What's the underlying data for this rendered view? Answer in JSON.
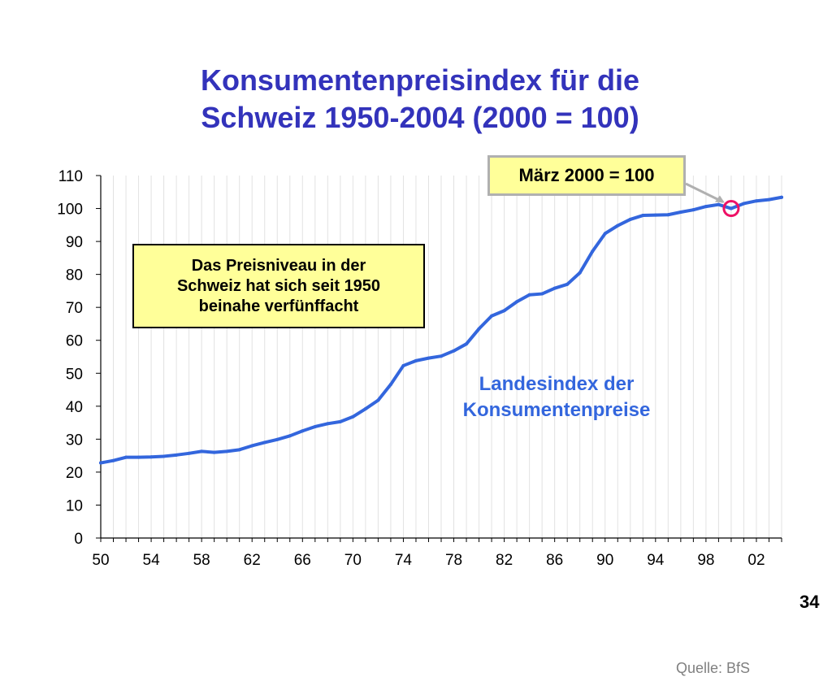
{
  "slide": {
    "title_line1": "Konsumentenpreisindex für die",
    "title_line2": "Schweiz 1950-2004 (2000 = 100)",
    "callout_line1": "Das Preisniveau in der",
    "callout_line2": "Schweiz hat sich seit 1950",
    "callout_line3": "beinahe verfünffacht",
    "marker_label": "März 2000 = 100",
    "series_label_line1": "Landesindex der",
    "series_label_line2": "Konsumentenpreise",
    "source": "Quelle: BfS",
    "page_number": "34"
  },
  "colors": {
    "title": "#3333bb",
    "line": "#3366dd",
    "callout_fill": "#ffff99",
    "marker_circle": "#ee1166"
  },
  "chart_data": {
    "type": "line",
    "title": "Konsumentenpreisindex für die Schweiz 1950-2004 (2000 = 100)",
    "xlabel": "",
    "ylabel": "",
    "xlim": [
      1950,
      2004
    ],
    "ylim": [
      0,
      110
    ],
    "yticks": [
      0,
      10,
      20,
      30,
      40,
      50,
      60,
      70,
      80,
      90,
      100,
      110
    ],
    "xticks": [
      1950,
      1954,
      1958,
      1962,
      1966,
      1970,
      1974,
      1978,
      1982,
      1986,
      1990,
      1994,
      1998,
      2002
    ],
    "xtick_labels": [
      "50",
      "54",
      "58",
      "62",
      "66",
      "70",
      "74",
      "78",
      "82",
      "86",
      "90",
      "94",
      "98",
      "02"
    ],
    "grid": "vertical",
    "series": [
      {
        "name": "Landesindex der Konsumentenpreise",
        "x": [
          1950,
          1951,
          1952,
          1953,
          1954,
          1955,
          1956,
          1957,
          1958,
          1959,
          1960,
          1961,
          1962,
          1963,
          1964,
          1965,
          1966,
          1967,
          1968,
          1969,
          1970,
          1971,
          1972,
          1973,
          1974,
          1975,
          1976,
          1977,
          1978,
          1979,
          1980,
          1981,
          1982,
          1983,
          1984,
          1985,
          1986,
          1987,
          1988,
          1989,
          1990,
          1991,
          1992,
          1993,
          1994,
          1995,
          1996,
          1997,
          1998,
          1999,
          2000,
          2001,
          2002,
          2003,
          2004
        ],
        "values": [
          22.8,
          23.5,
          24.5,
          24.5,
          24.6,
          24.8,
          25.2,
          25.7,
          26.3,
          26.0,
          26.3,
          26.8,
          28.0,
          29.0,
          29.9,
          31.0,
          32.5,
          33.8,
          34.7,
          35.3,
          36.8,
          39.2,
          41.8,
          46.6,
          52.3,
          53.8,
          54.6,
          55.2,
          56.8,
          58.9,
          63.5,
          67.4,
          69.0,
          71.7,
          73.8,
          74.1,
          75.8,
          77.0,
          80.5,
          87.0,
          92.4,
          94.8,
          96.7,
          97.9,
          98.0,
          98.1,
          98.9,
          99.6,
          100.6,
          101.2,
          100.0,
          101.5,
          102.3,
          102.7,
          103.4
        ]
      }
    ],
    "annotations": [
      {
        "text": "März 2000 = 100",
        "x": 2000,
        "y": 100
      },
      {
        "text": "Das Preisniveau in der Schweiz hat sich seit 1950 beinahe verfünffacht"
      }
    ]
  }
}
